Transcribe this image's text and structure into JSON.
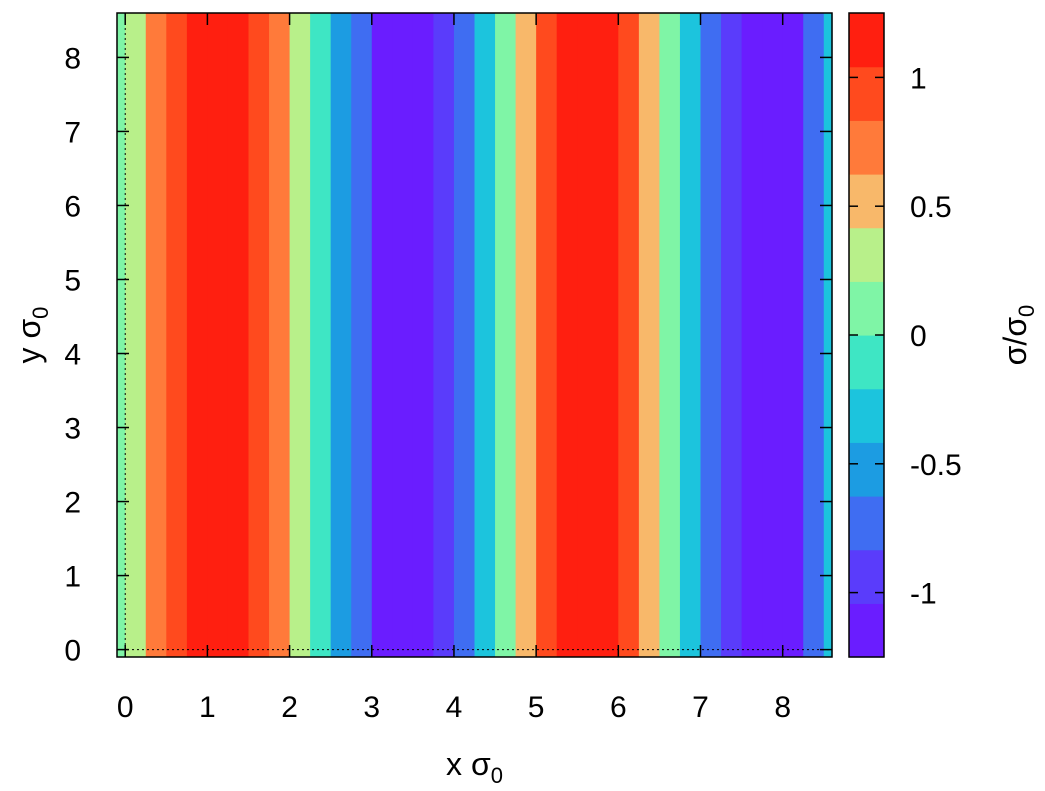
{
  "chart_data": {
    "type": "heatmap",
    "title": "",
    "xlabel": {
      "base": "x σ",
      "sub": "0"
    },
    "ylabel": {
      "base": "y σ",
      "sub": "0"
    },
    "colorbar_label": {
      "base": "σ/σ",
      "sub": "0"
    },
    "xlim": [
      -0.1,
      8.6
    ],
    "ylim": [
      -0.1,
      8.6
    ],
    "zlim": [
      -1.25,
      1.25
    ],
    "x_ticks": [
      0,
      1,
      2,
      3,
      4,
      5,
      6,
      7,
      8
    ],
    "y_ticks": [
      0,
      1,
      2,
      3,
      4,
      5,
      6,
      7,
      8
    ],
    "x_tick_labels": [
      "0",
      "1",
      "2",
      "3",
      "4",
      "5",
      "6",
      "7",
      "8"
    ],
    "y_tick_labels": [
      "0",
      "1",
      "2",
      "3",
      "4",
      "5",
      "6",
      "7",
      "8"
    ],
    "colorbar_ticks": [
      -1,
      -0.5,
      0,
      0.5,
      1
    ],
    "colorbar_tick_labels": [
      "-1",
      "-0.5",
      "0",
      "0.5",
      "1"
    ],
    "field": "σ(x, y) varies with x only; uniform along y",
    "x": [
      -0.1,
      0.0,
      0.25,
      0.5,
      0.75,
      1.0,
      1.25,
      1.5,
      1.75,
      2.0,
      2.25,
      2.5,
      2.75,
      3.0,
      3.25,
      3.5,
      3.75,
      4.0,
      4.25,
      4.5,
      4.75,
      5.0,
      5.25,
      5.5,
      5.75,
      6.0,
      6.25,
      6.5,
      6.75,
      7.0,
      7.25,
      7.5,
      7.75,
      8.0,
      8.25,
      8.5
    ],
    "values": [
      0.12,
      0.25,
      0.65,
      0.95,
      1.15,
      1.22,
      1.18,
      1.0,
      0.72,
      0.35,
      -0.05,
      -0.45,
      -0.8,
      -1.1,
      -1.22,
      -1.18,
      -1.0,
      -0.7,
      -0.3,
      0.1,
      0.5,
      0.85,
      1.1,
      1.22,
      1.12,
      0.85,
      0.5,
      0.1,
      -0.3,
      -0.7,
      -1.0,
      -1.18,
      -1.2,
      -1.05,
      -0.7,
      -0.3
    ],
    "colormap": [
      "#6a1dff",
      "#5a3cfb",
      "#3f6df2",
      "#1c9ce2",
      "#1cc4dd",
      "#3ee6c4",
      "#7ff5a6",
      "#b8f08a",
      "#f8b86a",
      "#ff7a3a",
      "#ff4a1e",
      "#ff1f10"
    ],
    "grid": false,
    "legend": "colorbar-right"
  }
}
